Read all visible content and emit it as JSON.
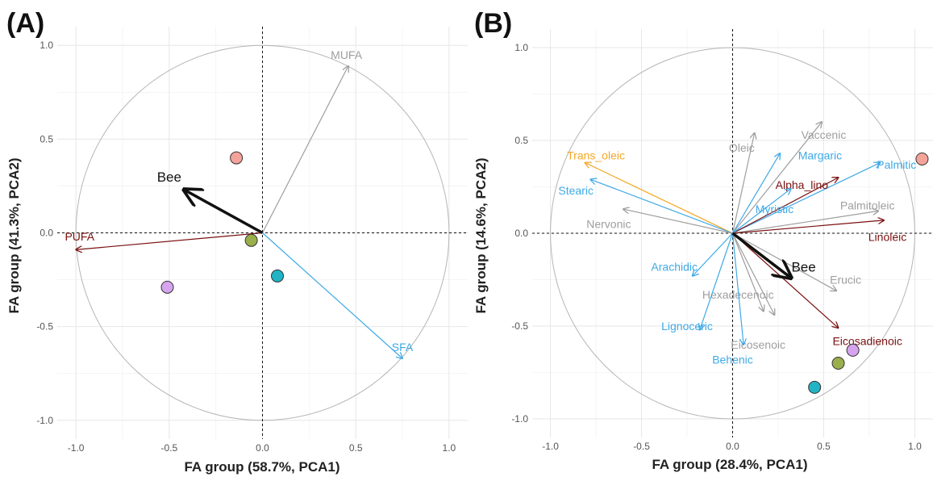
{
  "chart_data": [
    {
      "type": "scatter",
      "panel_label": "(A)",
      "xlabel": "FA group (58.7%, PCA1)",
      "ylabel": "FA group (41.3%, PCA2)",
      "xlim": [
        -1.1,
        1.1
      ],
      "ylim": [
        -1.1,
        1.1
      ],
      "ticks": [
        -1.0,
        -0.5,
        0.0,
        0.5,
        1.0
      ],
      "tick_labels": [
        "-1.0",
        "-0.5",
        "0.0",
        "0.5",
        "1.0"
      ],
      "vectors": [
        {
          "label": "MUFA",
          "x": 0.46,
          "y": 0.89,
          "color": "#9e9e9e",
          "lx": 0.45,
          "ly": 0.95
        },
        {
          "label": "PUFA",
          "x": -1.0,
          "y": -0.09,
          "color": "#7a1010",
          "lx": -0.98,
          "ly": -0.02
        },
        {
          "label": "SFA",
          "x": 0.75,
          "y": -0.67,
          "color": "#3fa9e6",
          "lx": 0.75,
          "ly": -0.61
        }
      ],
      "supplementary": {
        "label": "Bee",
        "x": -0.42,
        "y": 0.23,
        "lx": -0.5,
        "ly": 0.3
      },
      "points": [
        {
          "x": -0.14,
          "y": 0.4,
          "color": "#f4a39a"
        },
        {
          "x": -0.06,
          "y": -0.04,
          "color": "#9aae4c"
        },
        {
          "x": 0.08,
          "y": -0.23,
          "color": "#22b4c4"
        },
        {
          "x": -0.51,
          "y": -0.29,
          "color": "#d6a4ee"
        }
      ]
    },
    {
      "type": "scatter",
      "panel_label": "(B)",
      "xlabel": "FA group (28.4%, PCA1)",
      "ylabel": "FA group (14.6%, PCA2)",
      "xlim": [
        -1.1,
        1.1
      ],
      "ylim": [
        -1.1,
        1.1
      ],
      "ticks": [
        -1.0,
        -0.5,
        0.0,
        0.5,
        1.0
      ],
      "tick_labels": [
        "-1.0",
        "-0.5",
        "0.0",
        "0.5",
        "1.0"
      ],
      "vectors": [
        {
          "label": "Vaccenic",
          "x": 0.49,
          "y": 0.6,
          "color": "#9e9e9e",
          "lx": 0.5,
          "ly": 0.53
        },
        {
          "label": "Oleic",
          "x": 0.12,
          "y": 0.54,
          "color": "#9e9e9e",
          "lx": 0.05,
          "ly": 0.46
        },
        {
          "label": "Margaric",
          "x": 0.26,
          "y": 0.43,
          "color": "#3fa9e6",
          "lx": 0.48,
          "ly": 0.42
        },
        {
          "label": "Trans_oleic",
          "x": -0.81,
          "y": 0.38,
          "color": "#f5a623",
          "lx": -0.75,
          "ly": 0.42
        },
        {
          "label": "Palmitic",
          "x": 0.81,
          "y": 0.38,
          "color": "#3fa9e6",
          "lx": 0.9,
          "ly": 0.37
        },
        {
          "label": "Alpha_lino",
          "x": 0.58,
          "y": 0.3,
          "color": "#7a1010",
          "lx": 0.38,
          "ly": 0.26
        },
        {
          "label": "Stearic",
          "x": -0.78,
          "y": 0.29,
          "color": "#3fa9e6",
          "lx": -0.86,
          "ly": 0.23
        },
        {
          "label": "Palmitoleic",
          "x": 0.8,
          "y": 0.12,
          "color": "#9e9e9e",
          "lx": 0.74,
          "ly": 0.15
        },
        {
          "label": "Myristic",
          "x": 0.32,
          "y": 0.24,
          "color": "#3fa9e6",
          "lx": 0.23,
          "ly": 0.13
        },
        {
          "label": "Nervonic",
          "x": -0.6,
          "y": 0.13,
          "color": "#9e9e9e",
          "lx": -0.68,
          "ly": 0.05
        },
        {
          "label": "Linoleic",
          "x": 0.83,
          "y": 0.07,
          "color": "#7a1010",
          "lx": 0.85,
          "ly": -0.02
        },
        {
          "label": "Arachidic",
          "x": -0.22,
          "y": -0.23,
          "color": "#3fa9e6",
          "lx": -0.32,
          "ly": -0.18
        },
        {
          "label": "Erucic",
          "x": 0.57,
          "y": -0.31,
          "color": "#9e9e9e",
          "lx": 0.62,
          "ly": -0.25
        },
        {
          "label": "Hexadecenoic",
          "x": 0.17,
          "y": -0.42,
          "color": "#9e9e9e",
          "lx": 0.03,
          "ly": -0.33
        },
        {
          "label": "Eicosenoic",
          "x": 0.23,
          "y": -0.44,
          "color": "#9e9e9e",
          "lx": 0.14,
          "ly": -0.6
        },
        {
          "label": "Lignoceric",
          "x": -0.18,
          "y": -0.52,
          "color": "#3fa9e6",
          "lx": -0.25,
          "ly": -0.5
        },
        {
          "label": "Behenic",
          "x": 0.06,
          "y": -0.6,
          "color": "#3fa9e6",
          "lx": 0.0,
          "ly": -0.68
        },
        {
          "label": "Eicosadienoic",
          "x": 0.58,
          "y": -0.51,
          "color": "#7a1010",
          "lx": 0.74,
          "ly": -0.58
        }
      ],
      "supplementary": {
        "label": "Bee",
        "x": 0.32,
        "y": -0.24,
        "lx": 0.39,
        "ly": -0.18
      },
      "points": [
        {
          "x": 1.04,
          "y": 0.4,
          "color": "#f4a39a"
        },
        {
          "x": 0.66,
          "y": -0.63,
          "color": "#d6a4ee"
        },
        {
          "x": 0.58,
          "y": -0.7,
          "color": "#9aae4c"
        },
        {
          "x": 0.45,
          "y": -0.83,
          "color": "#22b4c4"
        }
      ]
    }
  ]
}
